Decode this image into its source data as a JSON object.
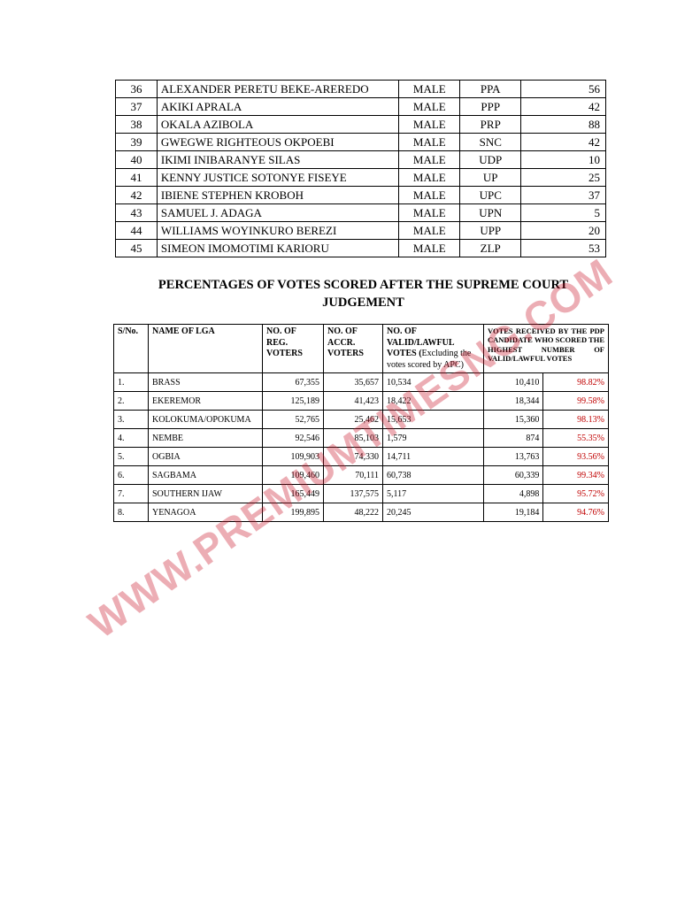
{
  "watermark_text": "WWW.PREMIUMTIMESNG.COM",
  "candidates_table": {
    "rows": [
      {
        "sn": "36",
        "name": "ALEXANDER PERETU BEKE-AREREDO",
        "gender": "MALE",
        "party": "PPA",
        "votes": "56"
      },
      {
        "sn": "37",
        "name": "AKIKI APRALA",
        "gender": "MALE",
        "party": "PPP",
        "votes": "42"
      },
      {
        "sn": "38",
        "name": "OKALA AZIBOLA",
        "gender": "MALE",
        "party": "PRP",
        "votes": "88"
      },
      {
        "sn": "39",
        "name": "GWEGWE RIGHTEOUS OKPOEBI",
        "gender": "MALE",
        "party": "SNC",
        "votes": "42"
      },
      {
        "sn": "40",
        "name": "IKIMI INIBARANYE SILAS",
        "gender": "MALE",
        "party": "UDP",
        "votes": "10"
      },
      {
        "sn": "41",
        "name": "KENNY JUSTICE SOTONYE FISEYE",
        "gender": "MALE",
        "party": "UP",
        "votes": "25"
      },
      {
        "sn": "42",
        "name": "IBIENE STEPHEN KROBOH",
        "gender": "MALE",
        "party": "UPC",
        "votes": "37"
      },
      {
        "sn": "43",
        "name": "SAMUEL J. ADAGA",
        "gender": "MALE",
        "party": "UPN",
        "votes": "5"
      },
      {
        "sn": "44",
        "name": "WILLIAMS WOYINKURO BEREZI",
        "gender": "MALE",
        "party": "UPP",
        "votes": "20"
      },
      {
        "sn": "45",
        "name": "SIMEON IMOMOTIMI KARIORU",
        "gender": "MALE",
        "party": "ZLP",
        "votes": "53"
      }
    ]
  },
  "heading_line1": "PERCENTAGES OF VOTES SCORED AFTER THE SUPREME COURT",
  "heading_line2": "JUDGEMENT",
  "lga_table": {
    "headers": {
      "sn": "S/No.",
      "lga": "NAME OF LGA",
      "reg": "NO. OF REG. VOTERS",
      "accr": "NO. OF ACCR. VOTERS",
      "valid_bold": "NO. OF VALID/LAWFUL VOTES (",
      "valid_rest": "Excluding the votes scored by APC)",
      "pdp": "VOTES RECEIVED BY THE PDP CANDIDATE WHO SCORED THE HIGHEST NUMBER OF VALID/LAWFUL VOTES"
    },
    "rows": [
      {
        "sn": "1.",
        "lga": "BRASS",
        "reg": "67,355",
        "accr": "35,657",
        "valid": "10,534",
        "pdp_votes": "10,410",
        "pdp_pct": "98.82%"
      },
      {
        "sn": "2.",
        "lga": "EKEREMOR",
        "reg": "125,189",
        "accr": "41,423",
        "valid": "18,422",
        "pdp_votes": "18,344",
        "pdp_pct": "99.58%"
      },
      {
        "sn": "3.",
        "lga": "KOLOKUMA/OPOKUMA",
        "reg": "52,765",
        "accr": "25,462",
        "valid": "15,653",
        "pdp_votes": "15,360",
        "pdp_pct": "98.13%"
      },
      {
        "sn": "4.",
        "lga": "NEMBE",
        "reg": "92,546",
        "accr": "85,103",
        "valid": "1,579",
        "pdp_votes": "874",
        "pdp_pct": "55.35%"
      },
      {
        "sn": "5.",
        "lga": "OGBIA",
        "reg": "109,903",
        "accr": "74,330",
        "valid": "14,711",
        "pdp_votes": "13,763",
        "pdp_pct": "93.56%"
      },
      {
        "sn": "6.",
        "lga": "SAGBAMA",
        "reg": "109,460",
        "accr": "70,111",
        "valid": "60,738",
        "pdp_votes": "60,339",
        "pdp_pct": "99.34%"
      },
      {
        "sn": "7.",
        "lga": "SOUTHERN IJAW",
        "reg": "165,449",
        "accr": "137,575",
        "valid": "5,117",
        "pdp_votes": "4,898",
        "pdp_pct": "95.72%"
      },
      {
        "sn": "8.",
        "lga": "YENAGOA",
        "reg": "199,895",
        "accr": "48,222",
        "valid": "20,245",
        "pdp_votes": "19,184",
        "pdp_pct": "94.76%"
      }
    ]
  },
  "colors": {
    "text": "#000000",
    "percent": "#c00000",
    "watermark": "rgba(200,20,40,0.35)",
    "background": "#ffffff",
    "border": "#000000"
  }
}
